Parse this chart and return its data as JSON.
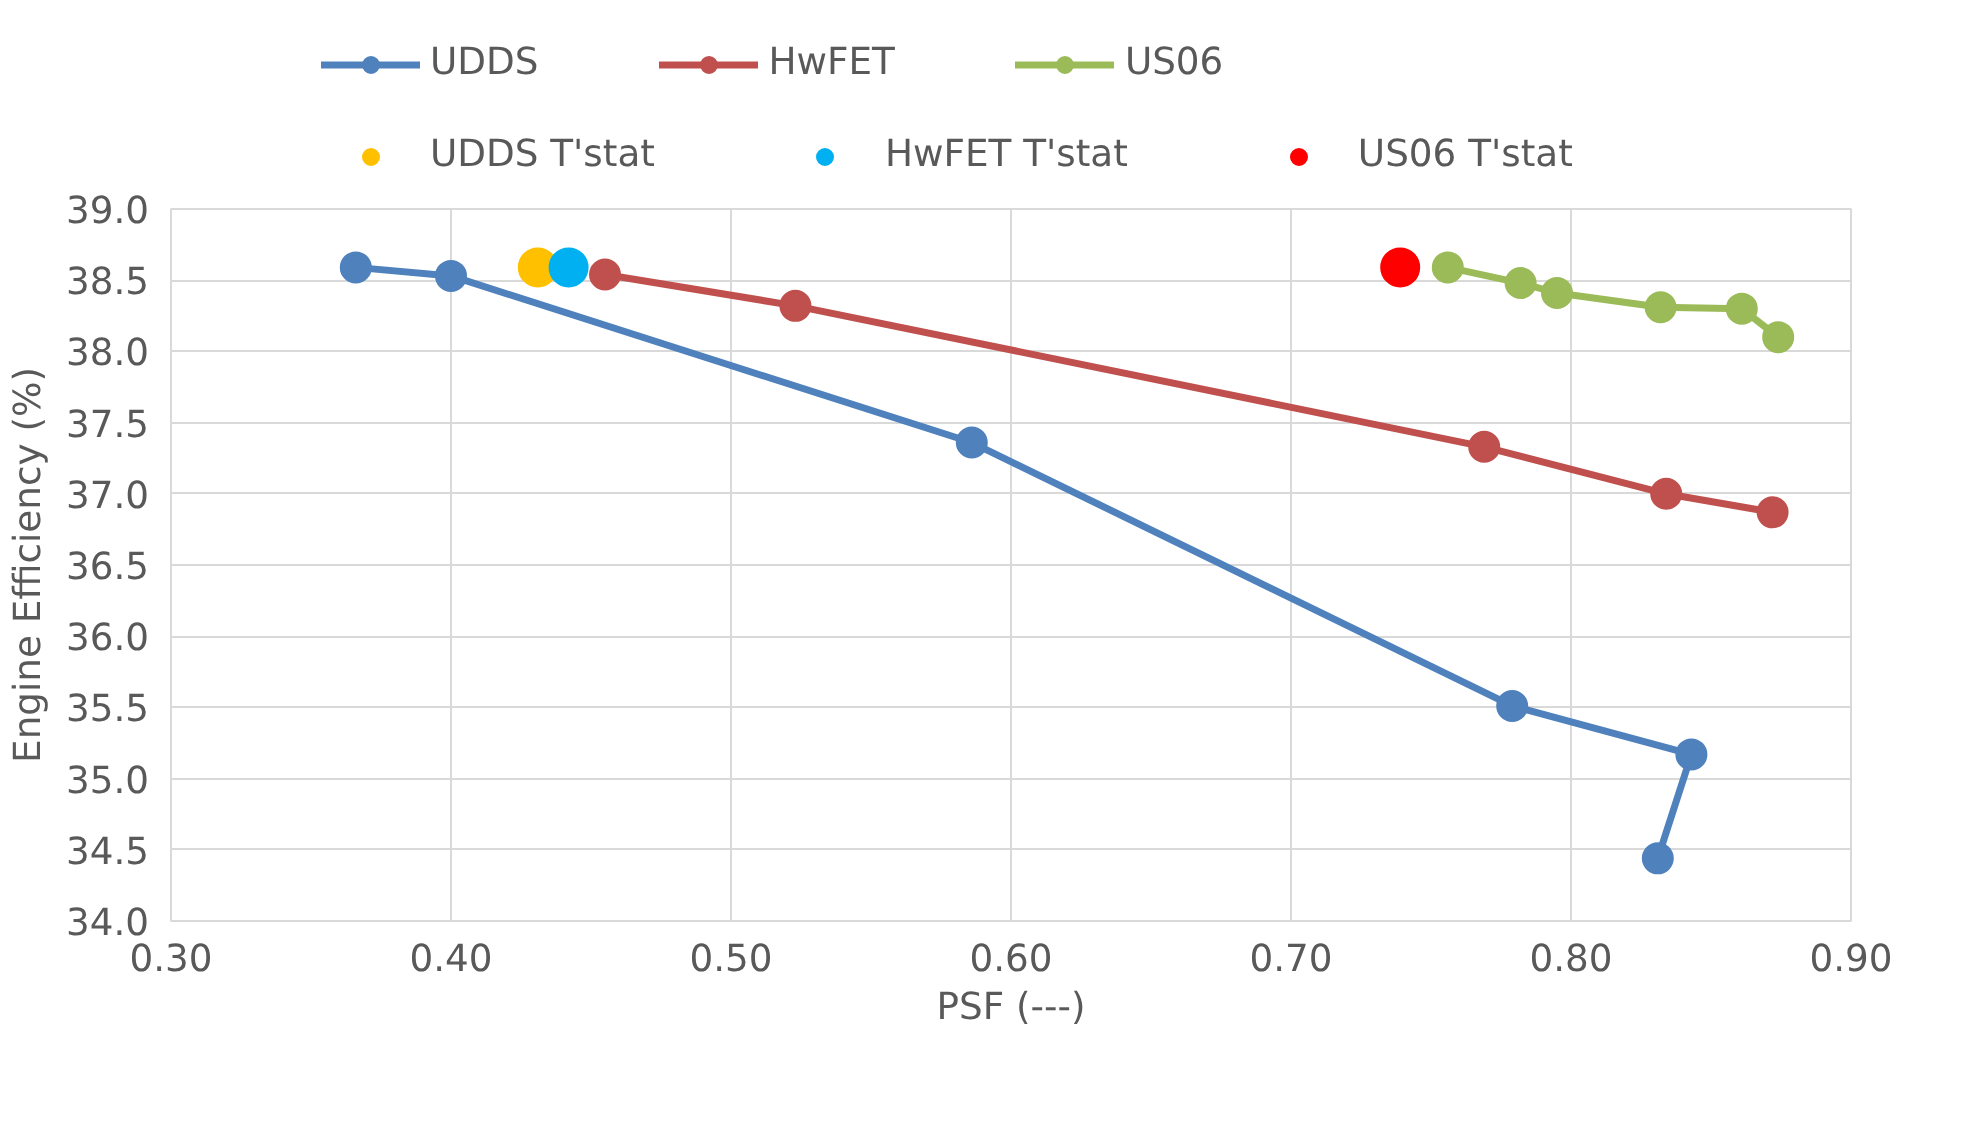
{
  "chart_data": {
    "type": "line",
    "xlabel": "PSF (---)",
    "ylabel": "Engine Efficiency (%)",
    "xlim": [
      0.3,
      0.9
    ],
    "xticks": [
      {
        "value": 0.3,
        "label": "0.30"
      },
      {
        "value": 0.4,
        "label": "0.40"
      },
      {
        "value": 0.5,
        "label": "0.50"
      },
      {
        "value": 0.6,
        "label": "0.60"
      },
      {
        "value": 0.7,
        "label": "0.70"
      },
      {
        "value": 0.8,
        "label": "0.80"
      },
      {
        "value": 0.9,
        "label": "0.90"
      }
    ],
    "ylim": [
      34.0,
      39.0
    ],
    "yticks": [
      {
        "value": 34.0,
        "label": "34.0"
      },
      {
        "value": 34.5,
        "label": "34.5"
      },
      {
        "value": 35.0,
        "label": "35.0"
      },
      {
        "value": 35.5,
        "label": "35.5"
      },
      {
        "value": 36.0,
        "label": "36.0"
      },
      {
        "value": 36.5,
        "label": "36.5"
      },
      {
        "value": 37.0,
        "label": "37.0"
      },
      {
        "value": 37.5,
        "label": "37.5"
      },
      {
        "value": 38.0,
        "label": "38.0"
      },
      {
        "value": 38.5,
        "label": "38.5"
      },
      {
        "value": 39.0,
        "label": "39.0"
      }
    ],
    "grid": true,
    "legend": "top",
    "marker": "circle",
    "line_style": "solid",
    "series": [
      {
        "name": "UDDS",
        "color": "#4f81bd",
        "x": [
          0.366,
          0.4,
          0.586,
          0.779,
          0.843,
          0.831
        ],
        "values": [
          38.59,
          38.53,
          37.36,
          35.51,
          35.17,
          34.44
        ]
      },
      {
        "name": "HwFET",
        "color": "#c0504d",
        "x": [
          0.455,
          0.523,
          0.769,
          0.834,
          0.872
        ],
        "values": [
          38.54,
          38.32,
          37.33,
          37.0,
          36.87
        ]
      },
      {
        "name": "US06",
        "color": "#9bbb59",
        "x": [
          0.756,
          0.782,
          0.795,
          0.832,
          0.861,
          0.874
        ],
        "values": [
          38.59,
          38.48,
          38.41,
          38.31,
          38.3,
          38.1
        ]
      },
      {
        "name": "UDDS T'stat",
        "type": "scatter",
        "color": "#ffc000",
        "x": [
          0.431
        ],
        "values": [
          38.59
        ]
      },
      {
        "name": "HwFET T'stat",
        "type": "scatter",
        "color": "#00b0f0",
        "x": [
          0.442
        ],
        "values": [
          38.59
        ]
      },
      {
        "name": "US06 T'stat",
        "type": "scatter",
        "color": "#ff0000",
        "x": [
          0.739
        ],
        "values": [
          38.59
        ]
      }
    ]
  }
}
